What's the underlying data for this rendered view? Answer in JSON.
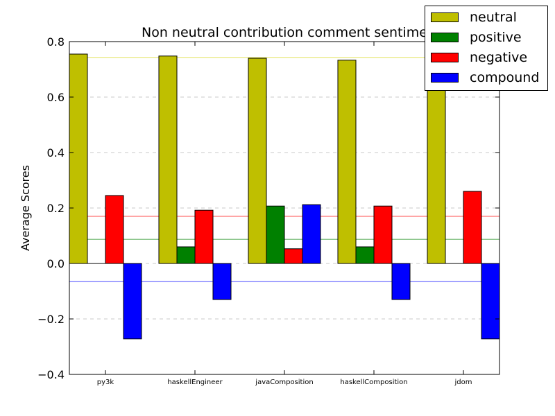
{
  "chart_data": {
    "type": "bar",
    "title": "Non neutral contribution comment sentime",
    "xlabel": "",
    "ylabel": "Average Scores",
    "ylim": [
      -0.4,
      0.8
    ],
    "yticks": [
      "−0.4",
      "−0.2",
      "0.0",
      "0.2",
      "0.4",
      "0.6",
      "0.8"
    ],
    "grid": "horizontal dashed",
    "legend_placement": "top-right",
    "categories": [
      "py3k",
      "haskellEngineer",
      "javaComposition",
      "haskellComposition",
      "jdom"
    ],
    "series": [
      {
        "name": "neutral",
        "color": "#bfbf00",
        "values": [
          0.755,
          0.748,
          0.74,
          0.733,
          0.745
        ]
      },
      {
        "name": "positive",
        "color": "#008000",
        "values": [
          0.0,
          0.06,
          0.207,
          0.06,
          0.0
        ]
      },
      {
        "name": "negative",
        "color": "#ff0000",
        "values": [
          0.245,
          0.192,
          0.053,
          0.207,
          0.26
        ]
      },
      {
        "name": "compound",
        "color": "#0000ff",
        "values": [
          -0.272,
          -0.13,
          0.212,
          -0.13,
          -0.272
        ]
      }
    ],
    "reference_lines": [
      {
        "series": "neutral",
        "value": 0.743,
        "color": "#e6e66b"
      },
      {
        "series": "negative",
        "value": 0.17,
        "color": "#ff7070"
      },
      {
        "series": "positive",
        "value": 0.087,
        "color": "#66b366"
      },
      {
        "series": "compound",
        "value": -0.065,
        "color": "#6b6bff"
      }
    ]
  }
}
